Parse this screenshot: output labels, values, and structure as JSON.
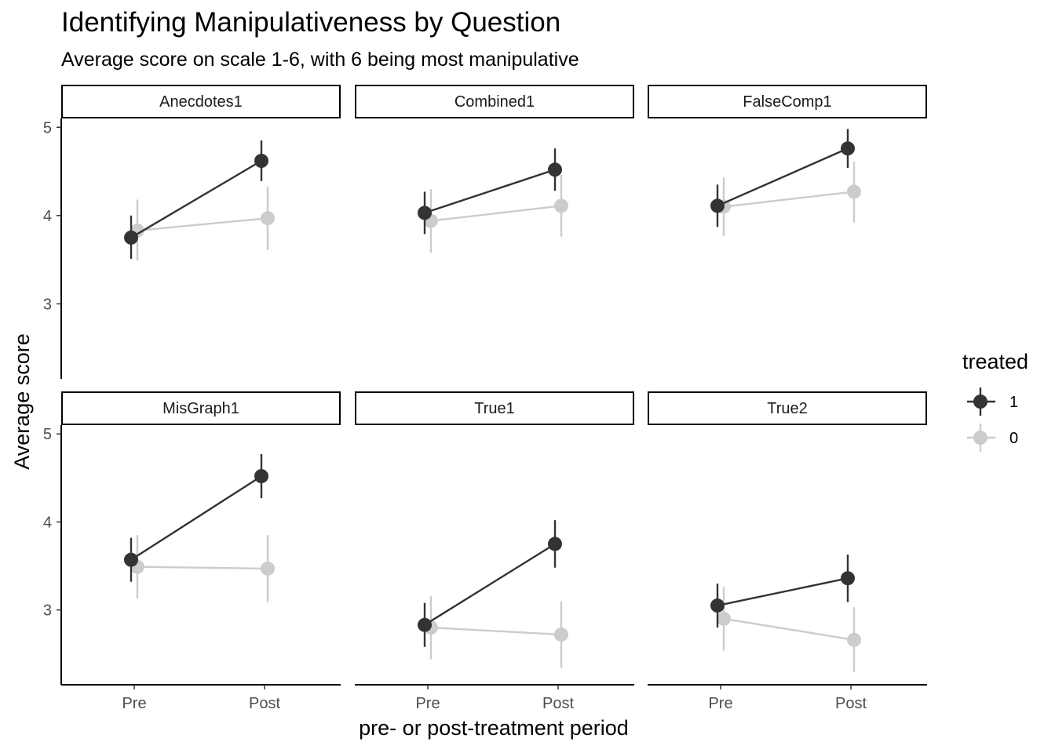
{
  "chart_data": {
    "type": "line",
    "title": "Identifying Manipulativeness by Question",
    "subtitle": "Average score on scale 1-6, with 6 being most manipulative",
    "xlabel": "pre- or post-treatment period",
    "ylabel": "Average score",
    "categories": [
      "Pre",
      "Post"
    ],
    "y_ticks": [
      3,
      4,
      5
    ],
    "ylim": [
      2.15,
      5.1
    ],
    "grid": false,
    "legend": {
      "title": "treated",
      "position": "right",
      "entries": [
        {
          "label": "1",
          "color": "#333333"
        },
        {
          "label": "0",
          "color": "#cccccc"
        }
      ]
    },
    "facets": [
      {
        "label": "Anecdotes1",
        "series": [
          {
            "treated": "1",
            "values": [
              3.75,
              4.62
            ],
            "lower": [
              3.51,
              4.39
            ],
            "upper": [
              4.0,
              4.85
            ]
          },
          {
            "treated": "0",
            "values": [
              3.83,
              3.97
            ],
            "lower": [
              3.49,
              3.61
            ],
            "upper": [
              4.18,
              4.33
            ]
          }
        ]
      },
      {
        "label": "Combined1",
        "series": [
          {
            "treated": "1",
            "values": [
              4.03,
              4.52
            ],
            "lower": [
              3.79,
              4.28
            ],
            "upper": [
              4.27,
              4.76
            ]
          },
          {
            "treated": "0",
            "values": [
              3.94,
              4.11
            ],
            "lower": [
              3.58,
              3.76
            ],
            "upper": [
              4.3,
              4.46
            ]
          }
        ]
      },
      {
        "label": "FalseComp1",
        "series": [
          {
            "treated": "1",
            "values": [
              4.11,
              4.76
            ],
            "lower": [
              3.87,
              4.54
            ],
            "upper": [
              4.35,
              4.98
            ]
          },
          {
            "treated": "0",
            "values": [
              4.1,
              4.27
            ],
            "lower": [
              3.77,
              3.92
            ],
            "upper": [
              4.43,
              4.61
            ]
          }
        ]
      },
      {
        "label": "MisGraph1",
        "series": [
          {
            "treated": "1",
            "values": [
              3.57,
              4.52
            ],
            "lower": [
              3.32,
              4.27
            ],
            "upper": [
              3.82,
              4.77
            ]
          },
          {
            "treated": "0",
            "values": [
              3.49,
              3.47
            ],
            "lower": [
              3.13,
              3.09
            ],
            "upper": [
              3.85,
              3.85
            ]
          }
        ]
      },
      {
        "label": "True1",
        "series": [
          {
            "treated": "1",
            "values": [
              2.83,
              3.75
            ],
            "lower": [
              2.58,
              3.48
            ],
            "upper": [
              3.08,
              4.02
            ]
          },
          {
            "treated": "0",
            "values": [
              2.8,
              2.72
            ],
            "lower": [
              2.44,
              2.34
            ],
            "upper": [
              3.16,
              3.1
            ]
          }
        ]
      },
      {
        "label": "True2",
        "series": [
          {
            "treated": "1",
            "values": [
              3.05,
              3.36
            ],
            "lower": [
              2.8,
              3.09
            ],
            "upper": [
              3.3,
              3.63
            ]
          },
          {
            "treated": "0",
            "values": [
              2.9,
              2.66
            ],
            "lower": [
              2.54,
              2.29
            ],
            "upper": [
              3.26,
              3.03
            ]
          }
        ]
      }
    ]
  }
}
